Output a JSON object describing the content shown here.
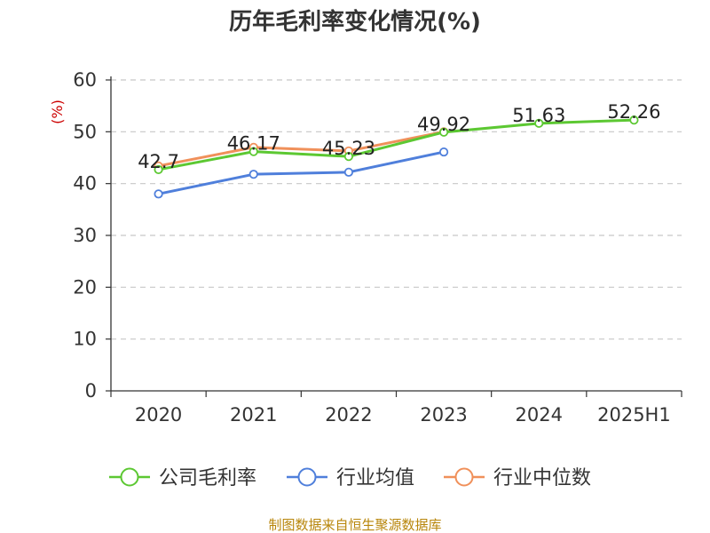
{
  "chart_data": {
    "type": "line",
    "title": "历年毛利率变化情况(%)",
    "ylabel": "(%)",
    "xlabel": "",
    "categories": [
      "2020",
      "2021",
      "2022",
      "2023",
      "2024",
      "2025H1"
    ],
    "ylim": [
      0,
      60
    ],
    "yticks": [
      0,
      10,
      20,
      30,
      40,
      50,
      60
    ],
    "grid": true,
    "legend_position": "bottom",
    "series": [
      {
        "name": "公司毛利率",
        "color": "#5cc832",
        "values": [
          42.7,
          46.17,
          45.23,
          49.92,
          51.63,
          52.26
        ],
        "labels": [
          "42.7",
          "46.17",
          "45.23",
          "49.92",
          "51.63",
          "52.26"
        ]
      },
      {
        "name": "行业均值",
        "color": "#4f7fdb",
        "values": [
          38.0,
          41.8,
          42.2,
          46.1,
          null,
          null
        ],
        "labels": []
      },
      {
        "name": "行业中位数",
        "color": "#f0905a",
        "values": [
          43.4,
          47.0,
          46.3,
          50.0,
          null,
          null
        ],
        "labels": []
      }
    ]
  },
  "source_note": "制图数据来自恒生聚源数据库"
}
